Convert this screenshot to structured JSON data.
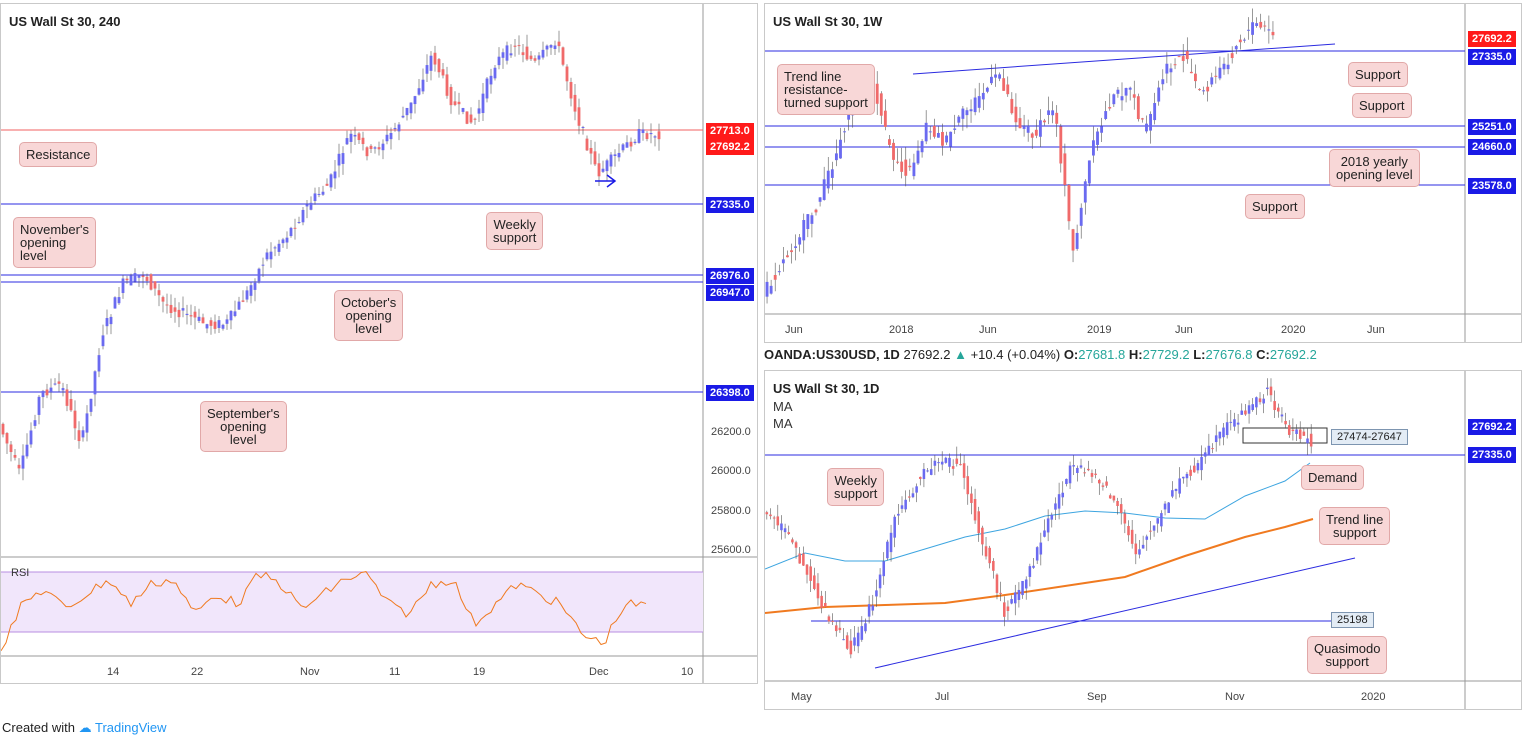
{
  "colors": {
    "bull": "#6a6af0",
    "bear": "#f06a6a",
    "level": "#2b2be0",
    "resistance": "#f06060",
    "rsi": "#f07a20",
    "ma_fast": "#3da5e0",
    "ma_slow": "#f07a20",
    "note_bg": "#f8d7d7",
    "brand": "#2196f3"
  },
  "left": {
    "title": "US Wall St 30, 240",
    "rsi_label": "RSI",
    "price_labels": [
      {
        "text": "27713.0",
        "style": "red"
      },
      {
        "text": "27692.2",
        "style": "red"
      },
      {
        "text": "27335.0",
        "style": "blue"
      },
      {
        "text": "26976.0",
        "style": "blue"
      },
      {
        "text": "26947.0",
        "style": "blue"
      },
      {
        "text": "26398.0",
        "style": "blue"
      }
    ],
    "y_ticks": [
      "26200.0",
      "26000.0",
      "25800.0",
      "25600.0"
    ],
    "x_ticks": [
      "14",
      "22",
      "Nov",
      "11",
      "19",
      "Dec",
      "10"
    ],
    "notes": {
      "resistance": "Resistance",
      "november": "November's\nopening\nlevel",
      "weekly": "Weekly\nsupport",
      "october": "October's\nopening\nlevel",
      "september": "September's\nopening\nlevel"
    }
  },
  "top_right": {
    "title": "US Wall St 30, 1W",
    "price_labels": [
      {
        "text": "27692.2",
        "style": "red"
      },
      {
        "text": "27335.0",
        "style": "blue"
      },
      {
        "text": "25251.0",
        "style": "blue"
      },
      {
        "text": "24660.0",
        "style": "blue"
      },
      {
        "text": "23578.0",
        "style": "blue"
      }
    ],
    "x_ticks": [
      "Jun",
      "2018",
      "Jun",
      "2019",
      "Jun",
      "2020",
      "Jun"
    ],
    "notes": {
      "trendline": "Trend line\nresistance-\nturned support",
      "support1": "Support",
      "support2": "Support",
      "yearly": "2018 yearly\nopening level",
      "support3": "Support"
    }
  },
  "header": {
    "symbol": "OANDA:US30USD, 1D",
    "price": "27692.2",
    "change": "+10.4 (+0.04%)",
    "o_label": "O:",
    "o": "27681.8",
    "h_label": "H:",
    "h": "27729.2",
    "l_label": "L:",
    "l": "27676.8",
    "c_label": "C:",
    "c": "27692.2"
  },
  "bottom_right": {
    "title": "US Wall St 30, 1D",
    "ma1": "MA",
    "ma2": "MA",
    "price_labels": [
      {
        "text": "27692.2",
        "style": "blue"
      },
      {
        "text": "27335.0",
        "style": "blue"
      }
    ],
    "zone": "27474-27647",
    "quasimodo_value": "25198",
    "x_ticks": [
      "May",
      "Jul",
      "Sep",
      "Nov",
      "2020"
    ],
    "notes": {
      "weekly": "Weekly\nsupport",
      "demand": "Demand",
      "trend": "Trend line\nsupport",
      "quasimodo": "Quasimodo\nsupport"
    }
  },
  "footer": {
    "created": "Created with",
    "brand": "TradingView"
  }
}
